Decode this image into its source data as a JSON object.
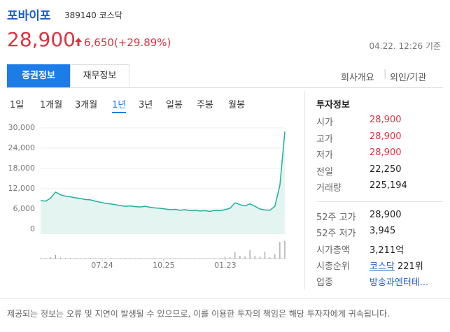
{
  "header": {
    "name": "포바이포",
    "code": "389140 코스닥"
  },
  "price": {
    "current": "28,900",
    "change": "6,650(+29.89%)",
    "time": "04.22. 12:26 기준"
  },
  "tabs": [
    "증권정보",
    "재무정보"
  ],
  "links": [
    "회사개요",
    "외인/기관"
  ],
  "periods": [
    "1일",
    "1개월",
    "3개월",
    "1년",
    "3년",
    "일봉",
    "주봉",
    "월봉"
  ],
  "info": {
    "title": "투자정보",
    "rows": [
      [
        "시가",
        "28,900"
      ],
      [
        "고가",
        "28,900"
      ],
      [
        "저가",
        "28,900"
      ],
      [
        "전일",
        "22,250"
      ],
      [
        "거래량",
        "225,194"
      ]
    ],
    "rows2": [
      [
        "52주 고가",
        "28,900"
      ],
      [
        "52주 저가",
        "3,945"
      ],
      [
        "시가총액",
        "3,211억"
      ],
      [
        "시총순위",
        "코스닥",
        "221위"
      ],
      [
        "업종",
        "방송과엔터테..."
      ]
    ]
  },
  "footer": "제공되는 정보는 오류 및 지연이 발생될 수 있으므로, 이를 이용한 투자의 책임은 해당 투자자에게 귀속됩니다.",
  "chart_data": {
    "type": "line",
    "series": [
      {
        "name": "price",
        "color": "#1fae9f",
        "values": [
          8500,
          8300,
          9200,
          11000,
          10200,
          9800,
          9600,
          9300,
          9100,
          8800,
          8700,
          8300,
          8000,
          7700,
          7500,
          7300,
          7000,
          6800,
          6900,
          6700,
          6600,
          6800,
          6500,
          6300,
          6200,
          6000,
          5800,
          5900,
          5600,
          5800,
          5500,
          5600,
          5400,
          5500,
          5300,
          5600,
          5500,
          5800,
          6200,
          7800,
          7300,
          6900,
          7500,
          6800,
          6000,
          5700,
          5600,
          6800,
          13000,
          28900
        ]
      },
      {
        "name": "volume",
        "color": "#9a9a9a",
        "axis": "y2",
        "values": [
          120000,
          90000,
          200000,
          500000,
          150000,
          100000,
          80000,
          90000,
          70000,
          60000,
          80000,
          60000,
          50000,
          70000,
          60000,
          50000,
          60000,
          50000,
          40000,
          50000,
          60000,
          50000,
          40000,
          50000,
          40000,
          50000,
          60000,
          40000,
          50000,
          40000,
          50000,
          60000,
          40000,
          50000,
          40000,
          60000,
          80000,
          300000,
          200000,
          900000,
          400000,
          300000,
          1200000,
          400000,
          300000,
          1000000,
          200000,
          600000,
          2400000,
          2500000
        ]
      }
    ],
    "xlim": [
      0,
      49
    ],
    "xticks": [
      {
        "value": 12.35,
        "label": "07.24"
      },
      {
        "value": 24.7,
        "label": "10.25"
      },
      {
        "value": 37.05,
        "label": "01.23"
      }
    ],
    "ylim": [
      -1450,
      31650
    ],
    "yticks": [
      0,
      {
        "value": 6000,
        "label": "6,000"
      },
      {
        "value": 12000,
        "label": "12,000"
      },
      {
        "value": 18000,
        "label": "18,000"
      },
      {
        "value": 24000,
        "label": "24,000"
      },
      {
        "value": 30000,
        "label": "30,000"
      }
    ],
    "y2lim": [
      0,
      3000000
    ],
    "grid": true
  }
}
